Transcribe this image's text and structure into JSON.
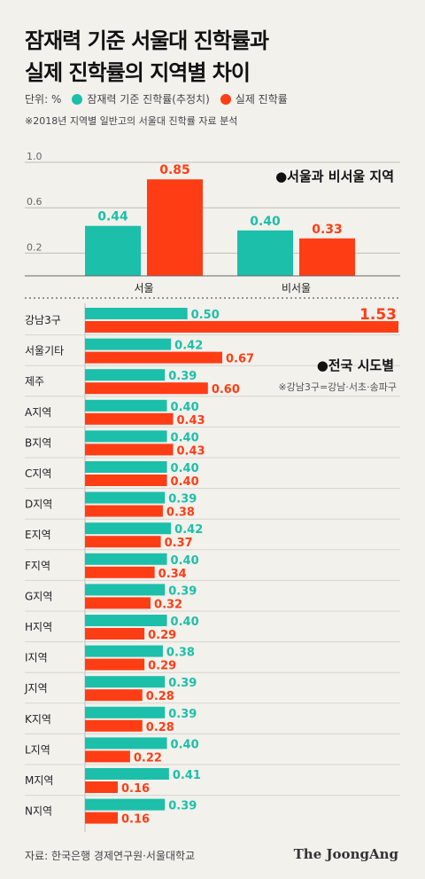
{
  "title": [
    "잠재력 기준 서울대 진학률과",
    "실제 진학률의 지역별 차이"
  ],
  "unit_label": "단위: %",
  "legend": [
    {
      "label": "잠재력 기준 진학률(추정치)",
      "color": "#1cbfa9"
    },
    {
      "label": "실제 진학률",
      "color": "#ff3d14"
    }
  ],
  "note": "※2018년 지역별 일반고의 서울대 진학률 자료 분석",
  "source": "자료: 한국은행 경제연구원·서울대학교",
  "brand": "The JoongAng",
  "chart_data": [
    {
      "type": "bar",
      "title": "●서울과 비서울 지역",
      "categories": [
        "서울",
        "비서울"
      ],
      "series": [
        {
          "name": "잠재력 기준 진학률(추정치)",
          "values": [
            0.44,
            0.4
          ]
        },
        {
          "name": "실제 진학률",
          "values": [
            0.85,
            0.33
          ]
        }
      ],
      "yticks": [
        "1.0",
        "0.6",
        "0.2"
      ],
      "ylim": [
        0,
        1.0
      ]
    },
    {
      "type": "bar",
      "orientation": "horizontal",
      "title": "●전국 시도별",
      "annotation": "※강남3구=강남·서초·송파구",
      "categories": [
        "강남3구",
        "서울기타",
        "제주",
        "A지역",
        "B지역",
        "C지역",
        "D지역",
        "E지역",
        "F지역",
        "G지역",
        "H지역",
        "I지역",
        "J지역",
        "K지역",
        "L지역",
        "M지역",
        "N지역"
      ],
      "series": [
        {
          "name": "잠재력 기준 진학률(추정치)",
          "values": [
            0.5,
            0.42,
            0.39,
            0.4,
            0.4,
            0.4,
            0.39,
            0.42,
            0.4,
            0.39,
            0.4,
            0.38,
            0.39,
            0.39,
            0.4,
            0.41,
            0.39
          ]
        },
        {
          "name": "실제 진학률",
          "values": [
            1.53,
            0.67,
            0.6,
            0.43,
            0.43,
            0.4,
            0.38,
            0.37,
            0.34,
            0.32,
            0.29,
            0.29,
            0.28,
            0.28,
            0.22,
            0.16,
            0.16
          ]
        }
      ],
      "xlim": [
        0,
        1.53
      ]
    }
  ]
}
